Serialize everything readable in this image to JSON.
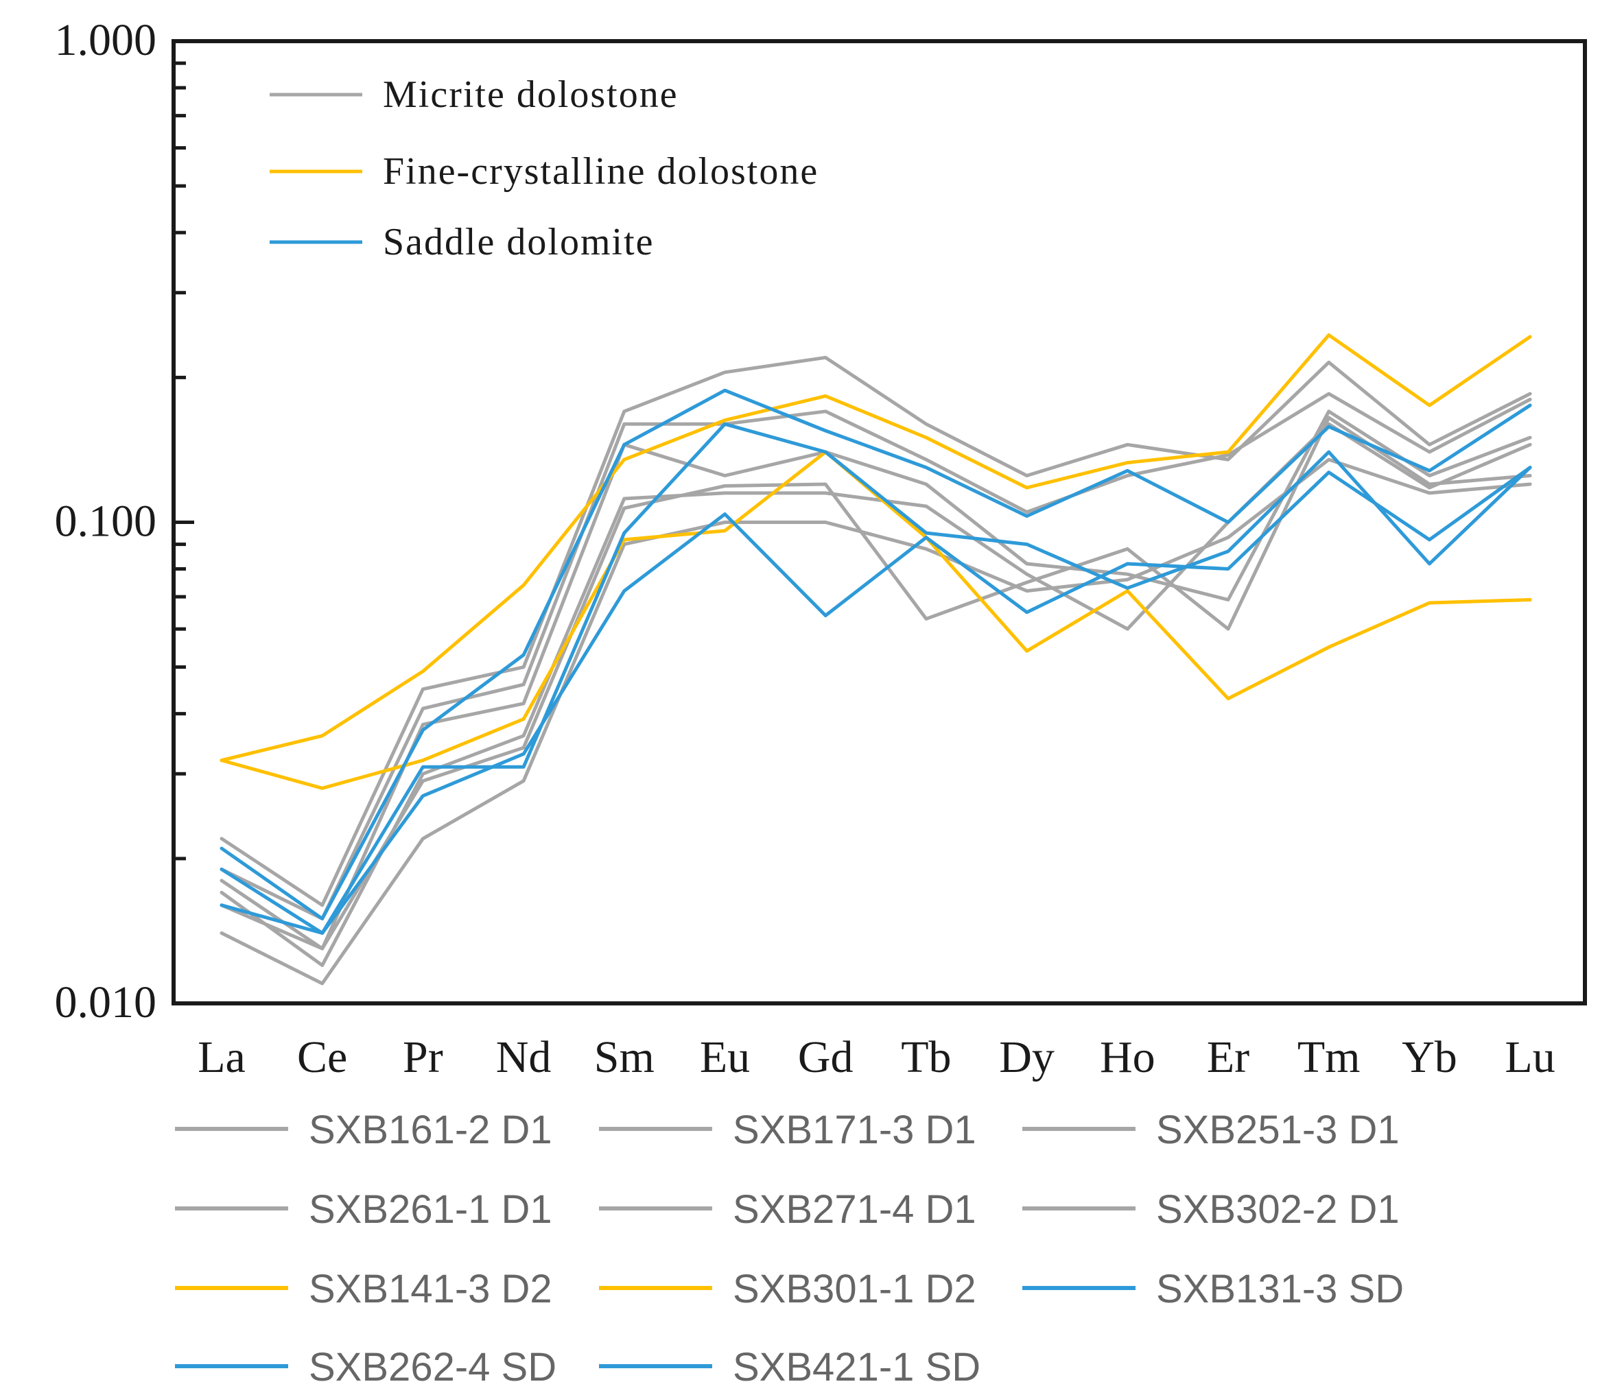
{
  "chart_data": {
    "type": "line",
    "title": "",
    "xlabel": "",
    "ylabel": "",
    "yscale": "log",
    "ylim": [
      0.01,
      1.0
    ],
    "y_tick_labels": [
      "1.000",
      "0.100",
      "0.010"
    ],
    "y_tick_values": [
      1.0,
      0.1,
      0.01
    ],
    "categories": [
      "La",
      "Ce",
      "Pr",
      "Nd",
      "Sm",
      "Eu",
      "Gd",
      "Tb",
      "Dy",
      "Ho",
      "Er",
      "Tm",
      "Yb",
      "Lu"
    ],
    "group_legend": [
      {
        "label": "Micrite dolostone",
        "color": "#a6a6a6"
      },
      {
        "label": "Fine-crystalline dolostone",
        "color": "#ffc000"
      },
      {
        "label": "Saddle dolomite",
        "color": "#2e9ad8"
      }
    ],
    "series": [
      {
        "name": "SXB161-2 D1",
        "color": "#a6a6a6",
        "values": [
          0.022,
          0.016,
          0.045,
          0.05,
          0.17,
          0.205,
          0.22,
          0.16,
          0.125,
          0.145,
          0.135,
          0.215,
          0.145,
          0.185
        ]
      },
      {
        "name": "SXB171-3 D1",
        "color": "#a6a6a6",
        "values": [
          0.019,
          0.015,
          0.041,
          0.046,
          0.16,
          0.16,
          0.17,
          0.135,
          0.105,
          0.125,
          0.138,
          0.185,
          0.14,
          0.18
        ]
      },
      {
        "name": "SXB251-3 D1",
        "color": "#a6a6a6",
        "values": [
          0.018,
          0.013,
          0.038,
          0.042,
          0.145,
          0.125,
          0.14,
          0.12,
          0.082,
          0.078,
          0.069,
          0.17,
          0.125,
          0.15
        ]
      },
      {
        "name": "SXB261-1 D1",
        "color": "#a6a6a6",
        "values": [
          0.017,
          0.012,
          0.03,
          0.036,
          0.112,
          0.115,
          0.115,
          0.108,
          0.078,
          0.06,
          0.1,
          0.16,
          0.118,
          0.145
        ]
      },
      {
        "name": "SXB271-4 D1",
        "color": "#a6a6a6",
        "values": [
          0.016,
          0.013,
          0.029,
          0.034,
          0.107,
          0.119,
          0.12,
          0.063,
          0.075,
          0.088,
          0.06,
          0.165,
          0.12,
          0.125
        ]
      },
      {
        "name": "SXB302-2 D1",
        "color": "#a6a6a6",
        "values": [
          0.014,
          0.011,
          0.022,
          0.029,
          0.09,
          0.1,
          0.1,
          0.088,
          0.072,
          0.076,
          0.093,
          0.135,
          0.115,
          0.12
        ]
      },
      {
        "name": "SXB141-3 D2",
        "color": "#ffc000",
        "values": [
          0.032,
          0.036,
          0.049,
          0.074,
          0.135,
          0.163,
          0.183,
          0.15,
          0.118,
          0.133,
          0.14,
          0.245,
          0.175,
          0.243
        ]
      },
      {
        "name": "SXB301-1 D2",
        "color": "#ffc000",
        "values": [
          0.032,
          0.028,
          0.032,
          0.039,
          0.092,
          0.096,
          0.14,
          0.093,
          0.054,
          0.072,
          0.043,
          0.055,
          0.068,
          0.069
        ]
      },
      {
        "name": "SXB131-3 SD",
        "color": "#2e9ad8",
        "values": [
          0.021,
          0.015,
          0.037,
          0.053,
          0.145,
          0.188,
          0.155,
          0.13,
          0.103,
          0.128,
          0.1,
          0.158,
          0.128,
          0.175
        ]
      },
      {
        "name": "SXB262-4 SD",
        "color": "#2e9ad8",
        "values": [
          0.019,
          0.014,
          0.031,
          0.031,
          0.095,
          0.16,
          0.14,
          0.095,
          0.09,
          0.073,
          0.087,
          0.14,
          0.082,
          0.13
        ]
      },
      {
        "name": "SXB421-1 SD",
        "color": "#2e9ad8",
        "values": [
          0.016,
          0.014,
          0.027,
          0.033,
          0.072,
          0.104,
          0.064,
          0.093,
          0.065,
          0.082,
          0.08,
          0.127,
          0.092,
          0.13
        ]
      }
    ]
  }
}
